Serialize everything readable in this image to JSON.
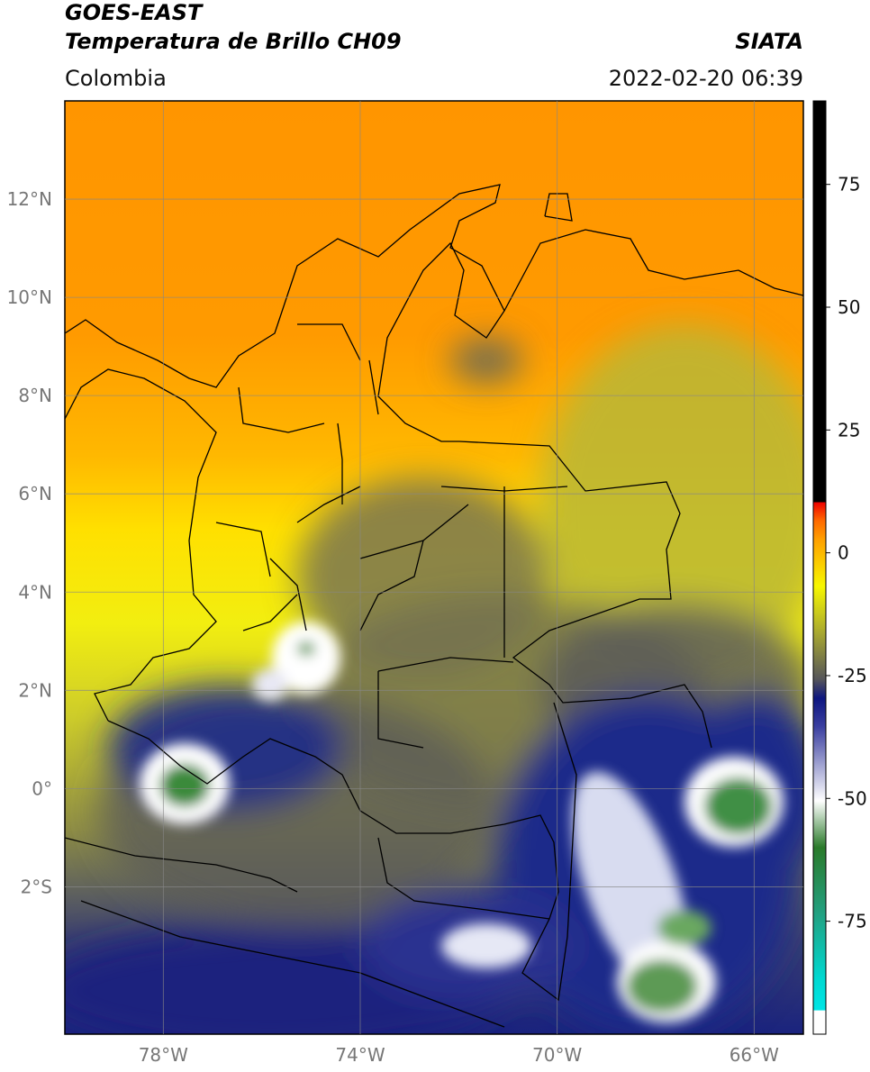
{
  "header": {
    "title": "GOES-EAST",
    "subtitle": "Temperatura de Brillo CH09",
    "region": "Colombia",
    "source": "SIATA",
    "datetime": "2022-02-20 06:39"
  },
  "map": {
    "xlim": [
      -80,
      -65
    ],
    "ylim": [
      -5,
      14
    ],
    "xticks": [
      {
        "value": -78,
        "label": "78°W"
      },
      {
        "value": -74,
        "label": "74°W"
      },
      {
        "value": -70,
        "label": "70°W"
      },
      {
        "value": -66,
        "label": "66°W"
      }
    ],
    "yticks": [
      {
        "value": 12,
        "label": "12°N"
      },
      {
        "value": 10,
        "label": "10°N"
      },
      {
        "value": 8,
        "label": "8°N"
      },
      {
        "value": 6,
        "label": "6°N"
      },
      {
        "value": 4,
        "label": "4°N"
      },
      {
        "value": 2,
        "label": "2°N"
      },
      {
        "value": 0,
        "label": "0°"
      },
      {
        "value": -2,
        "label": "2°S"
      }
    ],
    "grid": true
  },
  "colorbar": {
    "lim": [
      -98,
      92
    ],
    "ticks": [
      75,
      50,
      25,
      0,
      -25,
      -50,
      -75
    ]
  }
}
